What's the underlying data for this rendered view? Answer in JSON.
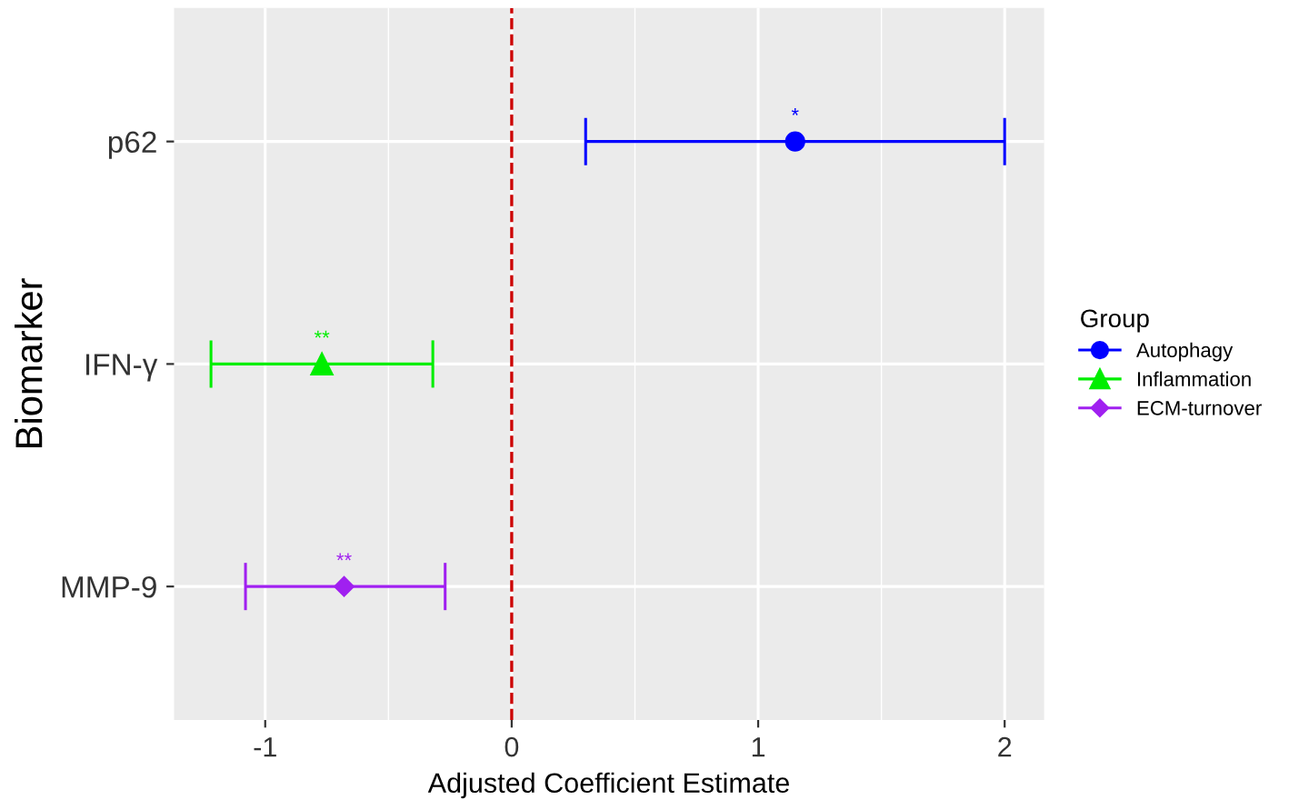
{
  "chart_data": {
    "type": "scatter",
    "orientation": "horizontal",
    "xlabel": "Adjusted Coefficient Estimate",
    "ylabel": "Biomarker",
    "legend_title": "Group",
    "categories": [
      "p62",
      "IFN-γ",
      "MMP-9"
    ],
    "series": [
      {
        "name": "Autophagy",
        "color": "#0000ff",
        "marker": "circle",
        "values": [
          1.15,
          null,
          null
        ],
        "errors": [
          [
            0.3,
            2.0
          ],
          null,
          null
        ]
      },
      {
        "name": "Inflammation",
        "color": "#00ee00",
        "marker": "triangle",
        "values": [
          null,
          -0.77,
          null
        ],
        "errors": [
          null,
          [
            -1.22,
            -0.32
          ],
          null
        ]
      },
      {
        "name": "ECM-turnover",
        "color": "#a020f0",
        "marker": "diamond",
        "values": [
          null,
          null,
          -0.68
        ],
        "errors": [
          null,
          null,
          [
            -1.08,
            -0.27
          ]
        ]
      }
    ],
    "annotations": [
      {
        "text": "*",
        "x": 1.15,
        "y": "p62"
      },
      {
        "text": "**",
        "x": -0.77,
        "y": "IFN-γ"
      },
      {
        "text": "**",
        "x": -0.68,
        "y": "MMP-9"
      }
    ],
    "ref_lines": [
      {
        "axis": "x",
        "value": 0,
        "color": "#cc0000",
        "line_style": "dashed"
      }
    ],
    "xlim": [
      -1.37,
      2.16
    ],
    "xticks": [
      -1,
      0,
      1,
      2
    ],
    "grid": true,
    "legend": "right"
  }
}
